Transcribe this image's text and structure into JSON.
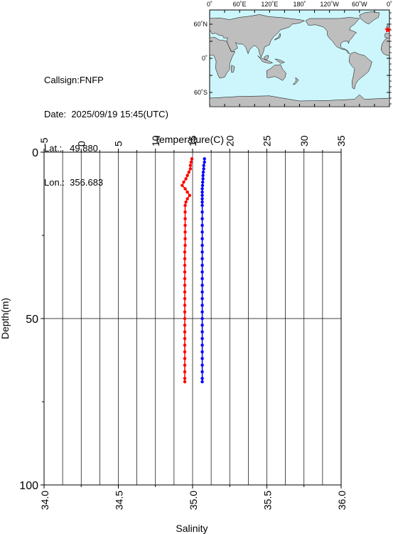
{
  "station": {
    "callsign_label": "Callsign:",
    "callsign": "FNFP",
    "date_label": "Date:",
    "date": "2025/09/19 15:45(UTC)",
    "lat_label": "Lat.:",
    "lat": "49.880",
    "lon_label": "Lon.:",
    "lon": "356.683"
  },
  "map": {
    "top_labels": [
      "0˚",
      "60˚E",
      "120˚E",
      "180˚",
      "120˚W",
      "60˚W",
      "0˚"
    ],
    "left_labels": [
      "60˚N",
      "0˚",
      "60˚S"
    ],
    "ocean_color": "#ccf6fb",
    "land_color": "#bebebe",
    "station_marker_color": "#ff0000",
    "station_lon": 356.683,
    "station_lat": 49.88
  },
  "chart_data": {
    "type": "scatter",
    "title": "",
    "top_axis_label": "Temperature(C)",
    "bottom_axis_label": "Salinity",
    "left_axis_label": "Depth(m)",
    "temperature_range": [
      -5,
      35
    ],
    "temperature_ticks": [
      -5,
      0,
      5,
      10,
      15,
      20,
      25,
      30,
      35
    ],
    "salinity_range": [
      34.0,
      36.0
    ],
    "salinity_ticks": [
      "34.0",
      "34.5",
      "35.0",
      "35.5",
      "36.0"
    ],
    "depth_range": [
      0,
      100
    ],
    "depth_ticks": [
      0,
      50,
      100
    ],
    "grid": true,
    "series": [
      {
        "variable": "temperature",
        "color": "#ff0000",
        "depth": [
          2,
          3,
          4,
          5,
          6,
          7,
          8,
          9,
          10,
          11,
          12,
          13,
          14,
          15,
          16,
          18,
          20,
          22,
          24,
          26,
          28,
          30,
          32,
          34,
          36,
          38,
          40,
          42,
          44,
          46,
          48,
          50,
          52,
          54,
          56,
          58,
          60,
          62,
          64,
          66,
          68,
          69
        ],
        "values": [
          14.9,
          14.8,
          14.7,
          14.7,
          14.5,
          14.3,
          14.1,
          13.8,
          13.6,
          14.0,
          14.3,
          14.6,
          14.3,
          14.1,
          14.0,
          14.0,
          14.0,
          14.0,
          14.0,
          14.0,
          14.0,
          13.95,
          13.95,
          13.95,
          13.95,
          13.95,
          13.95,
          13.95,
          13.95,
          13.95,
          13.95,
          13.95,
          13.95,
          13.95,
          13.95,
          13.95,
          13.95,
          13.95,
          13.95,
          13.95,
          13.95,
          13.95
        ]
      },
      {
        "variable": "salinity",
        "color": "#0000ff",
        "depth": [
          2,
          3,
          4,
          5,
          6,
          7,
          8,
          9,
          10,
          11,
          12,
          13,
          14,
          15,
          16,
          18,
          20,
          22,
          24,
          26,
          28,
          30,
          32,
          34,
          36,
          38,
          40,
          42,
          44,
          46,
          48,
          50,
          52,
          54,
          56,
          58,
          60,
          62,
          64,
          66,
          68,
          69
        ],
        "values": [
          35.08,
          35.08,
          35.075,
          35.075,
          35.072,
          35.07,
          35.07,
          35.068,
          35.067,
          35.065,
          35.065,
          35.065,
          35.065,
          35.065,
          35.065,
          35.065,
          35.065,
          35.065,
          35.065,
          35.065,
          35.065,
          35.065,
          35.065,
          35.065,
          35.065,
          35.065,
          35.065,
          35.065,
          35.065,
          35.065,
          35.065,
          35.065,
          35.065,
          35.065,
          35.065,
          35.065,
          35.065,
          35.065,
          35.065,
          35.065,
          35.065,
          35.065
        ]
      }
    ]
  }
}
